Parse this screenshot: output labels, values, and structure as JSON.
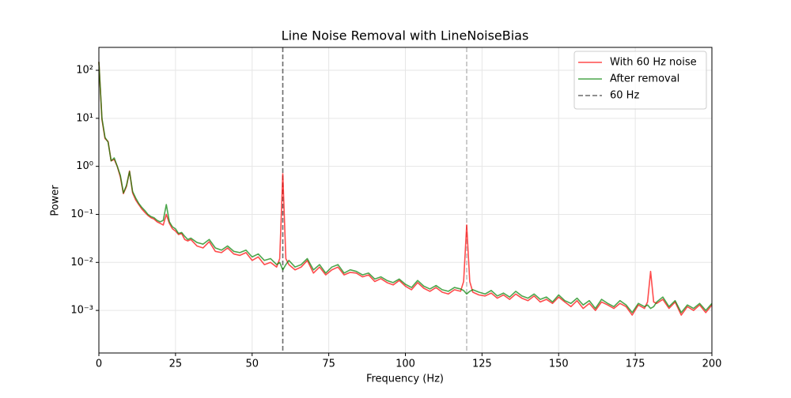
{
  "chart_data": {
    "type": "line",
    "title": "Line Noise Removal with LineNoiseBias",
    "xlabel": "Frequency (Hz)",
    "ylabel": "Power",
    "x": [
      0,
      1,
      2,
      3,
      4,
      5,
      6,
      7,
      8,
      9,
      10,
      11,
      12,
      13,
      14,
      15,
      16,
      17,
      18,
      19,
      20,
      21,
      22,
      23,
      24,
      25,
      26,
      27,
      28,
      29,
      30,
      32,
      34,
      36,
      38,
      40,
      42,
      44,
      46,
      48,
      50,
      52,
      54,
      56,
      58,
      59,
      60,
      61,
      62,
      64,
      66,
      68,
      70,
      72,
      74,
      76,
      78,
      80,
      82,
      84,
      86,
      88,
      90,
      92,
      94,
      96,
      98,
      100,
      102,
      104,
      106,
      108,
      110,
      112,
      114,
      116,
      118,
      119,
      120,
      121,
      122,
      124,
      126,
      128,
      130,
      132,
      134,
      136,
      138,
      140,
      142,
      144,
      146,
      148,
      150,
      152,
      154,
      156,
      158,
      160,
      162,
      164,
      166,
      168,
      170,
      172,
      174,
      176,
      178,
      179,
      180,
      181,
      182,
      184,
      186,
      188,
      190,
      192,
      194,
      196,
      198,
      200
    ],
    "series": [
      {
        "name": "With 60 Hz noise",
        "color": "#ff0000",
        "values": [
          150,
          9.5,
          3.8,
          3.3,
          1.3,
          1.4,
          1.0,
          0.6,
          0.27,
          0.38,
          0.8,
          0.28,
          0.2,
          0.16,
          0.13,
          0.11,
          0.095,
          0.085,
          0.08,
          0.07,
          0.065,
          0.06,
          0.1,
          0.065,
          0.05,
          0.045,
          0.038,
          0.04,
          0.03,
          0.028,
          0.03,
          0.022,
          0.02,
          0.027,
          0.017,
          0.016,
          0.02,
          0.015,
          0.014,
          0.016,
          0.011,
          0.013,
          0.009,
          0.01,
          0.008,
          0.012,
          0.7,
          0.012,
          0.009,
          0.007,
          0.008,
          0.011,
          0.006,
          0.008,
          0.0055,
          0.007,
          0.008,
          0.0055,
          0.0062,
          0.006,
          0.005,
          0.0055,
          0.004,
          0.0046,
          0.0038,
          0.0034,
          0.0042,
          0.0032,
          0.0027,
          0.0038,
          0.0029,
          0.0025,
          0.003,
          0.0024,
          0.0022,
          0.0027,
          0.0025,
          0.004,
          0.06,
          0.004,
          0.0024,
          0.0021,
          0.002,
          0.0023,
          0.0018,
          0.0021,
          0.0017,
          0.0022,
          0.0018,
          0.0016,
          0.002,
          0.0015,
          0.0017,
          0.0014,
          0.0019,
          0.0015,
          0.0012,
          0.0016,
          0.0011,
          0.0014,
          0.001,
          0.0015,
          0.0013,
          0.0011,
          0.0014,
          0.0012,
          0.0008,
          0.0013,
          0.0011,
          0.0015,
          0.0065,
          0.0015,
          0.0014,
          0.0017,
          0.0011,
          0.0015,
          0.0008,
          0.0012,
          0.001,
          0.0013,
          0.0009,
          0.0013
        ]
      },
      {
        "name": "After removal",
        "color": "#008000",
        "values": [
          150,
          10,
          4,
          3.2,
          1.3,
          1.5,
          1.0,
          0.65,
          0.28,
          0.4,
          0.78,
          0.3,
          0.22,
          0.17,
          0.14,
          0.12,
          0.1,
          0.09,
          0.085,
          0.075,
          0.07,
          0.075,
          0.16,
          0.07,
          0.055,
          0.05,
          0.04,
          0.042,
          0.035,
          0.03,
          0.032,
          0.026,
          0.024,
          0.03,
          0.02,
          0.018,
          0.022,
          0.017,
          0.016,
          0.018,
          0.013,
          0.015,
          0.011,
          0.012,
          0.009,
          0.01,
          0.007,
          0.009,
          0.011,
          0.008,
          0.009,
          0.012,
          0.007,
          0.009,
          0.006,
          0.008,
          0.009,
          0.006,
          0.007,
          0.0065,
          0.0055,
          0.006,
          0.0045,
          0.005,
          0.0042,
          0.0038,
          0.0045,
          0.0035,
          0.003,
          0.0042,
          0.0032,
          0.0028,
          0.0033,
          0.0027,
          0.0025,
          0.003,
          0.0028,
          0.0026,
          0.0022,
          0.0025,
          0.0027,
          0.0024,
          0.0022,
          0.0026,
          0.002,
          0.0023,
          0.0019,
          0.0025,
          0.002,
          0.0018,
          0.0022,
          0.0017,
          0.0019,
          0.0015,
          0.0021,
          0.0016,
          0.0014,
          0.0018,
          0.0013,
          0.0016,
          0.0011,
          0.0017,
          0.0014,
          0.0012,
          0.0016,
          0.0013,
          0.0009,
          0.0014,
          0.0012,
          0.0013,
          0.0011,
          0.0012,
          0.0015,
          0.0019,
          0.0012,
          0.0016,
          0.0009,
          0.0013,
          0.0011,
          0.0014,
          0.001,
          0.0014
        ]
      }
    ],
    "vlines": {
      "name": "60 Hz",
      "x": [
        60,
        120
      ],
      "colors": [
        "#6b6b6b",
        "#c0c0c0"
      ]
    },
    "xlim": [
      0,
      200
    ],
    "xticks": [
      0,
      25,
      50,
      75,
      100,
      125,
      150,
      175,
      200
    ],
    "ylim": [
      0.00013,
      300
    ],
    "log_y": true,
    "yticks": [
      {
        "value": 0.001,
        "label": "10⁻³"
      },
      {
        "value": 0.01,
        "label": "10⁻²"
      },
      {
        "value": 0.1,
        "label": "10⁻¹"
      },
      {
        "value": 1,
        "label": "10⁰"
      },
      {
        "value": 10,
        "label": "10¹"
      },
      {
        "value": 100,
        "label": "10²"
      }
    ],
    "grid": true,
    "legend": "upper right"
  }
}
